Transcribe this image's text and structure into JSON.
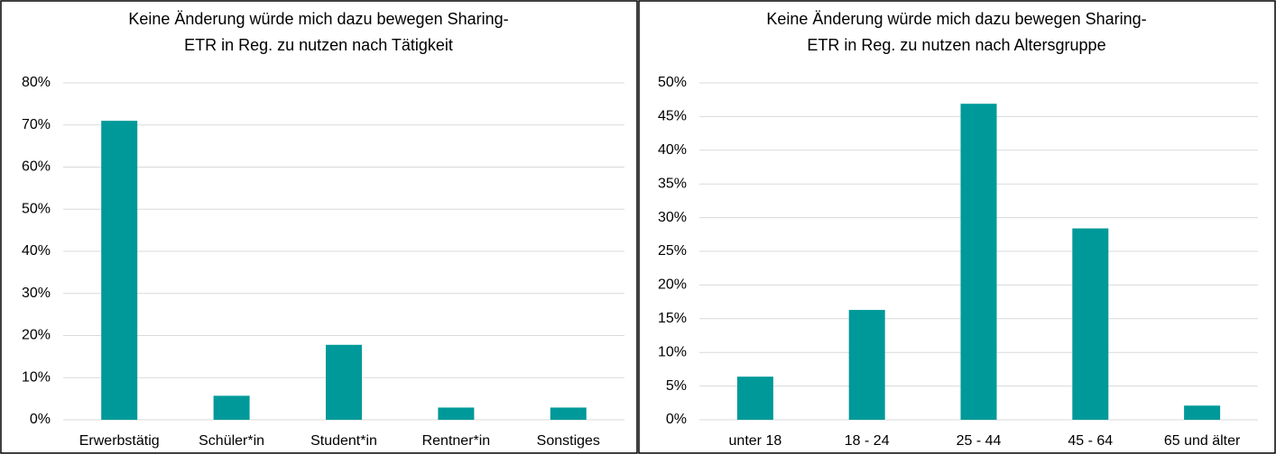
{
  "chart_data": [
    {
      "type": "bar",
      "title": [
        "Keine Änderung würde mich dazu bewegen Sharing-",
        "ETR in Reg. zu nutzen nach Tätigkeit"
      ],
      "categories": [
        "Erwerbstätig",
        "Schüler*in",
        "Student*in",
        "Rentner*in",
        "Sonstiges"
      ],
      "values": [
        71,
        5.7,
        17.8,
        2.9,
        2.9
      ],
      "color": "#009999",
      "ylim": [
        0,
        80
      ],
      "yticks": [
        {
          "value": 0,
          "label": "0%"
        },
        {
          "value": 10,
          "label": "10%"
        },
        {
          "value": 20,
          "label": "20%"
        },
        {
          "value": 30,
          "label": "30%"
        },
        {
          "value": 40,
          "label": "40%"
        },
        {
          "value": 50,
          "label": "50%"
        },
        {
          "value": 60,
          "label": "60%"
        },
        {
          "value": 70,
          "label": "70%"
        },
        {
          "value": 80,
          "label": "80%"
        }
      ],
      "grid": true
    },
    {
      "type": "bar",
      "title": [
        "Keine Änderung würde mich dazu bewegen Sharing-",
        "ETR in Reg. zu nutzen nach Altersgruppe"
      ],
      "categories": [
        "unter 18",
        "18 - 24",
        "25 - 44",
        "45 - 64",
        "65 und älter"
      ],
      "values": [
        6.4,
        16.3,
        46.9,
        28.4,
        2.1
      ],
      "color": "#009999",
      "ylim": [
        0,
        50
      ],
      "yticks": [
        {
          "value": 0,
          "label": "0%"
        },
        {
          "value": 5,
          "label": "5%"
        },
        {
          "value": 10,
          "label": "10%"
        },
        {
          "value": 15,
          "label": "15%"
        },
        {
          "value": 20,
          "label": "20%"
        },
        {
          "value": 25,
          "label": "25%"
        },
        {
          "value": 30,
          "label": "30%"
        },
        {
          "value": 35,
          "label": "35%"
        },
        {
          "value": 40,
          "label": "40%"
        },
        {
          "value": 45,
          "label": "45%"
        },
        {
          "value": 50,
          "label": "50%"
        }
      ],
      "grid": true
    }
  ]
}
